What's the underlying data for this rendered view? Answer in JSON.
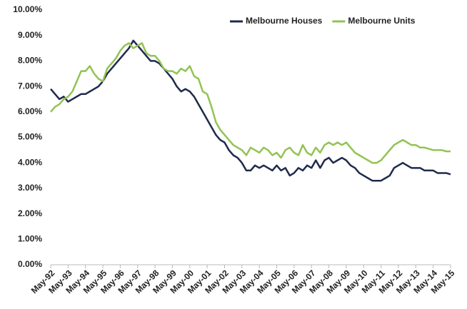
{
  "chart_data": {
    "type": "line",
    "legend": "upper right",
    "categories": [
      "May-92",
      null,
      null,
      null,
      "May-93",
      null,
      null,
      null,
      "May-94",
      null,
      null,
      null,
      "May-95",
      null,
      null,
      null,
      "May-96",
      null,
      null,
      null,
      "May-97",
      null,
      null,
      null,
      "May-98",
      null,
      null,
      null,
      "May-99",
      null,
      null,
      null,
      "May-00",
      null,
      null,
      null,
      "May-01",
      null,
      null,
      null,
      "May-02",
      null,
      null,
      null,
      "May-03",
      null,
      null,
      null,
      "May-04",
      null,
      null,
      null,
      "May-05",
      null,
      null,
      null,
      "May-06",
      null,
      null,
      null,
      "May-07",
      null,
      null,
      null,
      "May-08",
      null,
      null,
      null,
      "May-09",
      null,
      null,
      null,
      "May-10",
      null,
      null,
      null,
      "May-11",
      null,
      null,
      null,
      "May-12",
      null,
      null,
      null,
      "May-13",
      null,
      null,
      null,
      "May-14",
      null,
      null,
      null,
      "May-15"
    ],
    "series": [
      {
        "name": "Melbourne Houses",
        "color": "#1f2a4c",
        "values": [
          6.9,
          6.7,
          6.5,
          6.6,
          6.4,
          6.5,
          6.6,
          6.7,
          6.7,
          6.8,
          6.9,
          7.0,
          7.2,
          7.5,
          7.7,
          7.9,
          8.1,
          8.3,
          8.5,
          8.8,
          8.6,
          8.4,
          8.2,
          8.0,
          8.0,
          7.9,
          7.7,
          7.5,
          7.3,
          7.0,
          6.8,
          6.9,
          6.8,
          6.6,
          6.3,
          6.0,
          5.7,
          5.4,
          5.1,
          4.9,
          4.8,
          4.5,
          4.3,
          4.2,
          4.0,
          3.7,
          3.7,
          3.9,
          3.8,
          3.9,
          3.8,
          3.7,
          3.9,
          3.7,
          3.8,
          3.5,
          3.6,
          3.8,
          3.7,
          3.9,
          3.8,
          4.1,
          3.8,
          4.1,
          4.2,
          4.0,
          4.1,
          4.2,
          4.1,
          3.9,
          3.8,
          3.6,
          3.5,
          3.4,
          3.3,
          3.3,
          3.3,
          3.4,
          3.5,
          3.8,
          3.9,
          4.0,
          3.9,
          3.8,
          3.8,
          3.8,
          3.7,
          3.7,
          3.7,
          3.6,
          3.6,
          3.6,
          3.55
        ]
      },
      {
        "name": "Melbourne Units",
        "color": "#92c353",
        "values": [
          6.0,
          6.2,
          6.3,
          6.5,
          6.6,
          6.8,
          7.2,
          7.6,
          7.6,
          7.8,
          7.5,
          7.3,
          7.2,
          7.7,
          7.9,
          8.1,
          8.4,
          8.6,
          8.7,
          8.5,
          8.6,
          8.7,
          8.3,
          8.2,
          8.2,
          8.0,
          7.7,
          7.6,
          7.6,
          7.5,
          7.7,
          7.6,
          7.8,
          7.4,
          7.3,
          6.8,
          6.7,
          6.2,
          5.6,
          5.3,
          5.1,
          4.9,
          4.7,
          4.6,
          4.5,
          4.3,
          4.6,
          4.5,
          4.4,
          4.6,
          4.5,
          4.3,
          4.4,
          4.2,
          4.5,
          4.6,
          4.4,
          4.3,
          4.7,
          4.4,
          4.3,
          4.6,
          4.4,
          4.7,
          4.8,
          4.7,
          4.8,
          4.7,
          4.8,
          4.6,
          4.4,
          4.3,
          4.2,
          4.1,
          4.0,
          4.0,
          4.1,
          4.3,
          4.5,
          4.7,
          4.8,
          4.9,
          4.8,
          4.7,
          4.7,
          4.6,
          4.6,
          4.55,
          4.5,
          4.5,
          4.5,
          4.45,
          4.45
        ]
      }
    ],
    "ylim": [
      0,
      10
    ],
    "yticks": [
      {
        "value": 0,
        "label": "0.00%"
      },
      {
        "value": 1,
        "label": "1.00%"
      },
      {
        "value": 2,
        "label": "2.00%"
      },
      {
        "value": 3,
        "label": "3.00%"
      },
      {
        "value": 4,
        "label": "4.00%"
      },
      {
        "value": 5,
        "label": "5.00%"
      },
      {
        "value": 6,
        "label": "6.00%"
      },
      {
        "value": 7,
        "label": "7.00%"
      },
      {
        "value": 8,
        "label": "8.00%"
      },
      {
        "value": 9,
        "label": "9.00%"
      },
      {
        "value": 10,
        "label": "10.00%"
      }
    ]
  }
}
